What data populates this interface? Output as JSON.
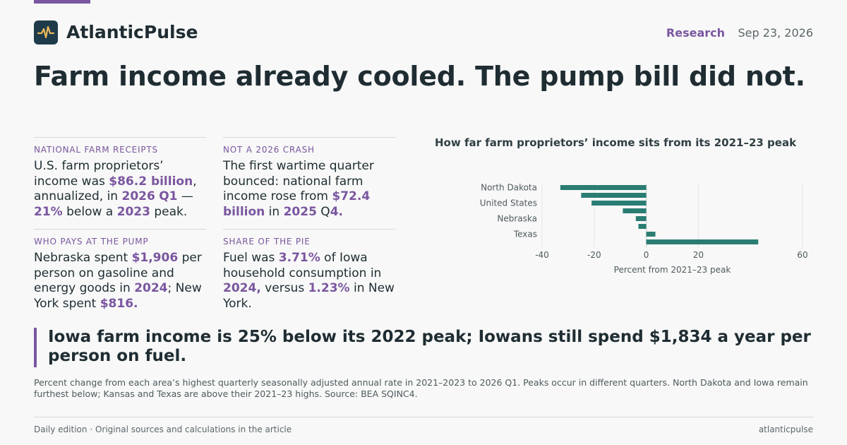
{
  "brand": {
    "name": "AtlanticPulse",
    "logo_icon": "pulse-icon"
  },
  "header": {
    "section": "Research",
    "date": "Sep 23, 2026"
  },
  "headline": "Farm income already cooled. The pump bill did not.",
  "stats": [
    {
      "kicker": "NATIONAL FARM RECEIPTS",
      "parts": [
        {
          "t": "U.S. farm proprietors’ income was "
        },
        {
          "t": "$86.2 billion",
          "b": true
        },
        {
          "t": ", annualized, in "
        },
        {
          "t": "2026",
          "b": true
        },
        {
          "t": " "
        },
        {
          "t": "Q1",
          "b": true
        },
        {
          "t": " — "
        },
        {
          "t": "21%",
          "b": true
        },
        {
          "t": " below a "
        },
        {
          "t": "2023",
          "b": true
        },
        {
          "t": " peak."
        }
      ]
    },
    {
      "kicker": "NOT A 2026 CRASH",
      "parts": [
        {
          "t": "The first wartime quarter bounced: national farm income rose from "
        },
        {
          "t": "$72.4 billion",
          "b": true
        },
        {
          "t": " in "
        },
        {
          "t": "2025",
          "b": true
        },
        {
          "t": " Q"
        },
        {
          "t": "4.",
          "b": true
        }
      ]
    },
    {
      "kicker": "WHO PAYS AT THE PUMP",
      "parts": [
        {
          "t": "Nebraska spent "
        },
        {
          "t": "$1,906",
          "b": true
        },
        {
          "t": " per person on gasoline and energy goods in "
        },
        {
          "t": "2024",
          "b": true
        },
        {
          "t": "; New York spent "
        },
        {
          "t": "$816.",
          "b": true
        }
      ]
    },
    {
      "kicker": "SHARE OF THE PIE",
      "parts": [
        {
          "t": "Fuel was "
        },
        {
          "t": "3.71%",
          "b": true
        },
        {
          "t": " of Iowa household consumption in "
        },
        {
          "t": "2024,",
          "b": true
        },
        {
          "t": " versus "
        },
        {
          "t": "1.23%",
          "b": true
        },
        {
          "t": " in New York."
        }
      ]
    }
  ],
  "chart_data": {
    "type": "bar",
    "orientation": "horizontal",
    "title": "How far farm proprietors’ income sits from its 2021–23 peak",
    "xlabel": "Percent from 2021–23 peak",
    "ylabel": "",
    "xlim": [
      -40,
      60
    ],
    "xticks": [
      -40,
      -20,
      0,
      20,
      60
    ],
    "grid": true,
    "categories": [
      "North Dakota",
      "",
      "United States",
      "",
      "Nebraska",
      "",
      "Texas",
      ""
    ],
    "values": [
      -33,
      -25,
      -21,
      -9,
      -4,
      -3,
      3.5,
      43
    ],
    "bar_color": "#2a7d73"
  },
  "callout": "Iowa farm income is 25% below its 2022 peak; Iowans still spend $1,834 a year per person on fuel.",
  "note": "Percent change from each area’s highest quarterly seasonally adjusted annual rate in 2021–2023 to 2026 Q1. Peaks occur in different quarters. North Dakota and Iowa remain furthest below; Kansas and Texas are above their 2021–23 highs. Source: BEA SQINC4.",
  "footer": {
    "left": "Daily edition · Original sources and calculations in the article",
    "right": "atlanticpulse"
  },
  "colors": {
    "accent": "#7a56a0",
    "bar": "#2a7d73",
    "ink": "#1f2d33"
  }
}
